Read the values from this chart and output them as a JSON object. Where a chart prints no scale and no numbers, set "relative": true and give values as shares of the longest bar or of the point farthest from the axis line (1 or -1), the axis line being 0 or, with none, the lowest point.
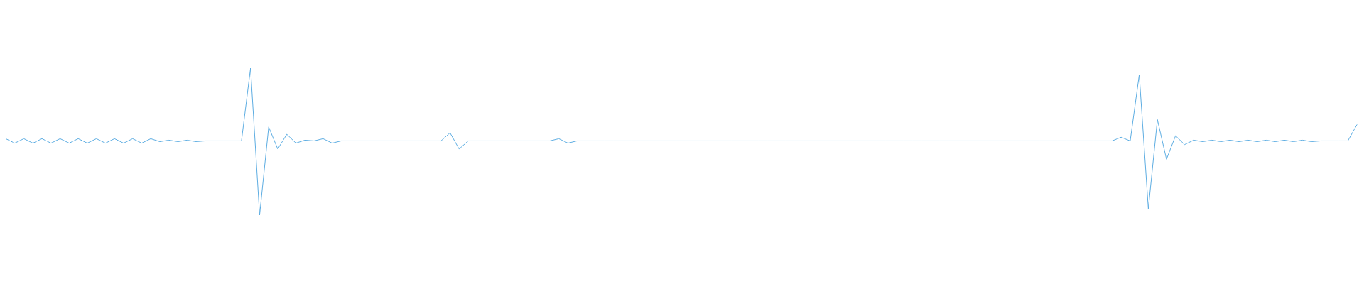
{
  "chart_data": {
    "type": "line",
    "relative": true,
    "marker": "none",
    "line_style": "solid",
    "categories": [
      null,
      null,
      null,
      null,
      null,
      null,
      null,
      null,
      null,
      null,
      null,
      null,
      null,
      null,
      null,
      null,
      null,
      null,
      null,
      null,
      null,
      null,
      null,
      null,
      null,
      null,
      null,
      null,
      null,
      null,
      null,
      null,
      null,
      null,
      null,
      null,
      null,
      null,
      null,
      null,
      null,
      null,
      null,
      null,
      null,
      null,
      null,
      null,
      null,
      null,
      null,
      null,
      null,
      null,
      null,
      null,
      null,
      null,
      null,
      null,
      null,
      null,
      null,
      null,
      null,
      null,
      null,
      null,
      null,
      null,
      null,
      null,
      null,
      null,
      null,
      null,
      null,
      null,
      null,
      null,
      null,
      null,
      null,
      null,
      null,
      null,
      null,
      null,
      null,
      null,
      null,
      null,
      null,
      null,
      null,
      null,
      null,
      null,
      null,
      null,
      null,
      null,
      null,
      null,
      null,
      null,
      null,
      null,
      null,
      null,
      null,
      null,
      null,
      null,
      null,
      null,
      null,
      null,
      null,
      null,
      null,
      null,
      null,
      null,
      null,
      null,
      null,
      null,
      null,
      null,
      null,
      null,
      null,
      null,
      null,
      null,
      null,
      null,
      null,
      null,
      null,
      null,
      null,
      null,
      null,
      null,
      null,
      null,
      null,
      null
    ],
    "series": [
      {
        "color": "#5dade2",
        "values": [
          0.52,
          0.49,
          0.52,
          0.49,
          0.52,
          0.49,
          0.52,
          0.49,
          0.52,
          0.49,
          0.52,
          0.49,
          0.52,
          0.49,
          0.52,
          0.49,
          0.52,
          0.5,
          0.51,
          0.5,
          0.51,
          0.5,
          0.505,
          0.505,
          0.505,
          0.505,
          0.505,
          1,
          0,
          0.6,
          0.45,
          0.55,
          0.49,
          0.51,
          0.505,
          0.52,
          0.49,
          0.505,
          0.505,
          0.505,
          0.505,
          0.505,
          0.505,
          0.505,
          0.505,
          0.505,
          0.505,
          0.505,
          0.505,
          0.56,
          0.45,
          0.505,
          0.505,
          0.505,
          0.505,
          0.505,
          0.505,
          0.505,
          0.505,
          0.505,
          0.505,
          0.52,
          0.49,
          0.505,
          0.505,
          0.505,
          0.505,
          0.505,
          0.505,
          0.505,
          0.505,
          0.505,
          0.505,
          0.505,
          0.505,
          0.505,
          0.505,
          0.505,
          0.505,
          0.505,
          0.505,
          0.505,
          0.505,
          0.505,
          0.505,
          0.505,
          0.505,
          0.505,
          0.505,
          0.505,
          0.505,
          0.505,
          0.505,
          0.505,
          0.505,
          0.505,
          0.505,
          0.505,
          0.505,
          0.505,
          0.505,
          0.505,
          0.505,
          0.505,
          0.505,
          0.505,
          0.505,
          0.505,
          0.505,
          0.505,
          0.505,
          0.505,
          0.505,
          0.505,
          0.505,
          0.505,
          0.505,
          0.505,
          0.505,
          0.505,
          0.505,
          0.505,
          0.505,
          0.53,
          0.505,
          0.956,
          0.044,
          0.65,
          0.38,
          0.54,
          0.48,
          0.51,
          0.5,
          0.51,
          0.5,
          0.51,
          0.5,
          0.51,
          0.5,
          0.51,
          0.5,
          0.51,
          0.5,
          0.51,
          0.5,
          0.505,
          0.505,
          0.505,
          0.505,
          0.615
        ]
      }
    ]
  }
}
